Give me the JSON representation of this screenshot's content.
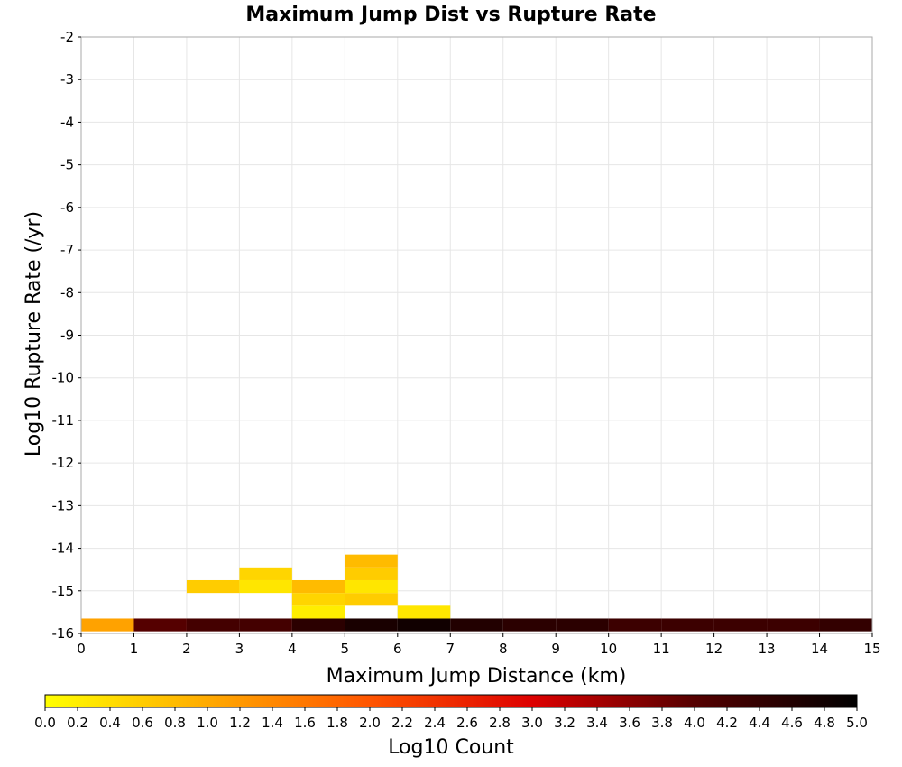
{
  "chart_data": {
    "type": "heatmap",
    "title": "Maximum Jump Dist vs Rupture Rate",
    "xlabel": "Maximum Jump Distance (km)",
    "ylabel": "Log10 Rupture Rate (/yr)",
    "colorbar_label": "Log10 Count",
    "xlim": [
      0,
      15
    ],
    "ylim": [
      -16,
      -2
    ],
    "x_ticks": [
      "0",
      "1",
      "2",
      "3",
      "4",
      "5",
      "6",
      "7",
      "8",
      "9",
      "10",
      "11",
      "12",
      "13",
      "14",
      "15"
    ],
    "y_ticks": [
      "-2",
      "-3",
      "-4",
      "-5",
      "-6",
      "-7",
      "-8",
      "-9",
      "-10",
      "-11",
      "-12",
      "-13",
      "-14",
      "-15",
      "-16"
    ],
    "color_ticks": [
      "0.0",
      "0.2",
      "0.4",
      "0.6",
      "0.8",
      "1.0",
      "1.2",
      "1.4",
      "1.6",
      "1.8",
      "2.0",
      "2.2",
      "2.4",
      "2.6",
      "2.8",
      "3.0",
      "3.2",
      "3.4",
      "3.6",
      "3.8",
      "4.0",
      "4.2",
      "4.4",
      "4.6",
      "4.8",
      "5.0"
    ],
    "color_range": [
      0,
      5
    ],
    "colormap": [
      "#ffff00",
      "#ffaa00",
      "#ff5500",
      "#dd0000",
      "#550000",
      "#000000"
    ],
    "x_bin_width": 1,
    "y_bin_width": 0.3,
    "y_bin_start": -15.8,
    "columns": [
      [
        1.1,
        0,
        0,
        0,
        0,
        0,
        0,
        0,
        0,
        0,
        0,
        0,
        0,
        0,
        0,
        0,
        0,
        0,
        0,
        0,
        0,
        0,
        0,
        0,
        0,
        0,
        0,
        0,
        0,
        0,
        0,
        0,
        0,
        0,
        0,
        0,
        0,
        0,
        0,
        0,
        0,
        0,
        0,
        0,
        0,
        0
      ],
      [
        4.0,
        0,
        0,
        0,
        0,
        0,
        0,
        0,
        0,
        0,
        0,
        0,
        0,
        0,
        0,
        0,
        0,
        0,
        0,
        0,
        0,
        0,
        0,
        0,
        0,
        0,
        0,
        0,
        0,
        0,
        0,
        0,
        0,
        0,
        0,
        0,
        0,
        0,
        0,
        0,
        0,
        0,
        0,
        0,
        0,
        0
      ],
      [
        4.2,
        0,
        0,
        0.6,
        0,
        0,
        0,
        0,
        0,
        0,
        0,
        0,
        0,
        0,
        0,
        0,
        0,
        0,
        0,
        0,
        0,
        0,
        0,
        0,
        0,
        0,
        0,
        0,
        0,
        0,
        0,
        0,
        0,
        0,
        0,
        0,
        0,
        0,
        0,
        0,
        0,
        0,
        0,
        0,
        0,
        0
      ],
      [
        4.2,
        0,
        0,
        0.3,
        0.5,
        0,
        0,
        0,
        0,
        0,
        0,
        0,
        0,
        0,
        0,
        0,
        0,
        0,
        0,
        0,
        0,
        0,
        0,
        0,
        0,
        0,
        0,
        0,
        0,
        0,
        0,
        0,
        0,
        0,
        0,
        0,
        0,
        0,
        0,
        0,
        0,
        0,
        0,
        0,
        0,
        0
      ],
      [
        4.5,
        0.2,
        0.5,
        0.8,
        0,
        0,
        0,
        0,
        0,
        0,
        0,
        0,
        0,
        0,
        0,
        0,
        0,
        0,
        0,
        0,
        0,
        0,
        0,
        0,
        0,
        0,
        0,
        0,
        0,
        0,
        0,
        0,
        0,
        0,
        0,
        0,
        0,
        0,
        0,
        0,
        0,
        0,
        0,
        0,
        0,
        0
      ],
      [
        4.7,
        0,
        0.6,
        0.3,
        0.6,
        0.8,
        0,
        0,
        0,
        0,
        0,
        0,
        0,
        0,
        0,
        0,
        0,
        0,
        0,
        0,
        0,
        0,
        0,
        0,
        0,
        0,
        0,
        0,
        0,
        0,
        0,
        0,
        0,
        0,
        0,
        0,
        0,
        0,
        0,
        0,
        0,
        0,
        0,
        0,
        0,
        0
      ],
      [
        4.8,
        0.3,
        0,
        0,
        0,
        0,
        0,
        0,
        0,
        0,
        0,
        0,
        0,
        0,
        0,
        0,
        0,
        0,
        0,
        0,
        0,
        0,
        0,
        0,
        0,
        0,
        0,
        0,
        0,
        0,
        0,
        0,
        0,
        0,
        0,
        0,
        0,
        0,
        0,
        0,
        0,
        0,
        0,
        0,
        0,
        0
      ],
      [
        4.6,
        0,
        0,
        0,
        0,
        0,
        0,
        0,
        0,
        0,
        0,
        0,
        0,
        0,
        0,
        0,
        0,
        0,
        0,
        0,
        0,
        0,
        0,
        0,
        0,
        0,
        0,
        0,
        0,
        0,
        0,
        0,
        0,
        0,
        0,
        0,
        0,
        0,
        0,
        0,
        0,
        0,
        0,
        0,
        0,
        0
      ],
      [
        4.5,
        0,
        0,
        0,
        0,
        0,
        0,
        0,
        0,
        0,
        0,
        0,
        0,
        0,
        0,
        0,
        0,
        0,
        0,
        0,
        0,
        0,
        0,
        0,
        0,
        0,
        0,
        0,
        0,
        0,
        0,
        0,
        0,
        0,
        0,
        0,
        0,
        0,
        0,
        0,
        0,
        0,
        0,
        0,
        0,
        0
      ],
      [
        4.5,
        0,
        0,
        0,
        0,
        0,
        0,
        0,
        0,
        0,
        0,
        0,
        0,
        0,
        0,
        0,
        0,
        0,
        0,
        0,
        0,
        0,
        0,
        0,
        0,
        0,
        0,
        0,
        0,
        0,
        0,
        0,
        0,
        0,
        0,
        0,
        0,
        0,
        0,
        0,
        0,
        0,
        0,
        0,
        0,
        0
      ],
      [
        4.3,
        0,
        0,
        0,
        0,
        0,
        0,
        0,
        0,
        0,
        0,
        0,
        0,
        0,
        0,
        0,
        0,
        0,
        0,
        0,
        0,
        0,
        0,
        0,
        0,
        0,
        0,
        0,
        0,
        0,
        0,
        0,
        0,
        0,
        0,
        0,
        0,
        0,
        0,
        0,
        0,
        0,
        0,
        0,
        0,
        0
      ],
      [
        4.3,
        0,
        0,
        0,
        0,
        0,
        0,
        0,
        0,
        0,
        0,
        0,
        0,
        0,
        0,
        0,
        0,
        0,
        0,
        0,
        0,
        0,
        0,
        0,
        0,
        0,
        0,
        0,
        0,
        0,
        0,
        0,
        0,
        0,
        0,
        0,
        0,
        0,
        0,
        0,
        0,
        0,
        0,
        0,
        0,
        0
      ],
      [
        4.3,
        0,
        0,
        0,
        0,
        0,
        0,
        0,
        0,
        0,
        0,
        0,
        0,
        0,
        0,
        0,
        0,
        0,
        0,
        0,
        0,
        0,
        0,
        0,
        0,
        0,
        0,
        0,
        0,
        0,
        0,
        0,
        0,
        0,
        0,
        0,
        0,
        0,
        0,
        0,
        0,
        0,
        0,
        0,
        0,
        0
      ],
      [
        4.3,
        0,
        0,
        0,
        0,
        0,
        0,
        0,
        0,
        0,
        0,
        0,
        0,
        0,
        0,
        0,
        0,
        0,
        0,
        0,
        0,
        0,
        0,
        0,
        0,
        0,
        0,
        0,
        0,
        0,
        0,
        0,
        0,
        0,
        0,
        0,
        0,
        0,
        0,
        0,
        0,
        0,
        0,
        0,
        0,
        0
      ],
      [
        4.4,
        0,
        0,
        0,
        0,
        0,
        0,
        0,
        0,
        0,
        0,
        0,
        0,
        0,
        0,
        0,
        0,
        0,
        0,
        0,
        0,
        0,
        0,
        0,
        0,
        0,
        0,
        0,
        0,
        0,
        0,
        0,
        0,
        0,
        0,
        0,
        0,
        0,
        0,
        0,
        0,
        0,
        0,
        0,
        0,
        0
      ]
    ]
  }
}
